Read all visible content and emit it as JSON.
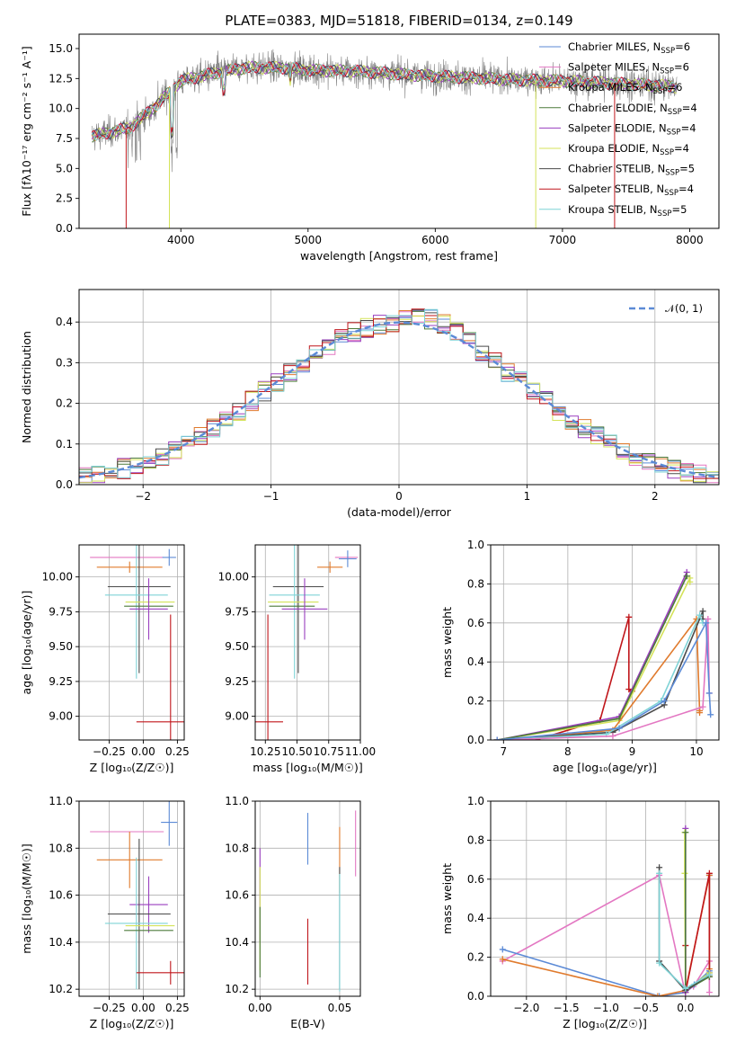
{
  "colors": {
    "Chabrier MILES": "#5b8ad6",
    "Salpeter MILES": "#e377c2",
    "Kroupa MILES": "#e07b2e",
    "Chabrier ELODIE": "#4c7a3a",
    "Salpeter ELODIE": "#9a3fbf",
    "Kroupa ELODIE": "#d4e35a",
    "Chabrier STELIB": "#4a4a4a",
    "Salpeter STELIB": "#c0161b",
    "Kroupa STELIB": "#7fd3d6",
    "data": "#7f7f7f"
  },
  "chart_data": [
    {
      "id": "spectrum",
      "type": "line",
      "title": "PLATE=0383, MJD=51818, FIBERID=0134, z=0.149",
      "xlabel": "wavelength [Angstrom, rest frame]",
      "ylabel": "Flux [fλ10⁻¹⁷ erg cm⁻² s⁻¹ A⁻¹]",
      "xlim": [
        3200,
        8230
      ],
      "ylim": [
        0,
        16.2
      ],
      "xticks": [
        "4000",
        "5000",
        "6000",
        "7000",
        "8000"
      ],
      "yticks": [
        "0.0",
        "2.5",
        "5.0",
        "7.5",
        "10.0",
        "12.5",
        "15.0"
      ],
      "legend": [
        {
          "label": "Chabrier MILES, N",
          "sub": "SSP",
          "val": "=6",
          "key": "Chabrier MILES"
        },
        {
          "label": "Salpeter MILES, N",
          "sub": "SSP",
          "val": "=6",
          "key": "Salpeter MILES"
        },
        {
          "label": "Kroupa MILES, N",
          "sub": "SSP",
          "val": "=6",
          "key": "Kroupa MILES"
        },
        {
          "label": "Chabrier ELODIE, N",
          "sub": "SSP",
          "val": "=4",
          "key": "Chabrier ELODIE"
        },
        {
          "label": "Salpeter ELODIE, N",
          "sub": "SSP",
          "val": "=4",
          "key": "Salpeter ELODIE"
        },
        {
          "label": "Kroupa ELODIE, N",
          "sub": "SSP",
          "val": "=4",
          "key": "Kroupa ELODIE"
        },
        {
          "label": "Chabrier STELIB, N",
          "sub": "SSP",
          "val": "=5",
          "key": "Chabrier STELIB"
        },
        {
          "label": "Salpeter STELIB, N",
          "sub": "SSP",
          "val": "=4",
          "key": "Salpeter STELIB"
        },
        {
          "label": "Kroupa STELIB, N",
          "sub": "SSP",
          "val": "=5",
          "key": "Kroupa STELIB"
        }
      ],
      "continuum": [
        [
          3300,
          7.7
        ],
        [
          3400,
          7.9
        ],
        [
          3600,
          8.4
        ],
        [
          3800,
          10.2
        ],
        [
          4000,
          12.3
        ],
        [
          4200,
          12.8
        ],
        [
          4500,
          13.4
        ],
        [
          4800,
          13.4
        ],
        [
          5000,
          13.2
        ],
        [
          5400,
          13.1
        ],
        [
          5800,
          12.8
        ],
        [
          6200,
          12.6
        ],
        [
          6600,
          12.4
        ],
        [
          7000,
          12.3
        ],
        [
          7400,
          12.1
        ],
        [
          7800,
          11.9
        ],
        [
          7900,
          11.8
        ]
      ],
      "dips": [
        {
          "key": "Salpeter STELIB",
          "x": 3570
        },
        {
          "key": "Kroupa ELODIE",
          "x": 3910
        },
        {
          "key": "Kroupa ELODIE",
          "x": 6790
        },
        {
          "key": "Salpeter STELIB",
          "x": 7410
        }
      ]
    },
    {
      "id": "residuals",
      "type": "histogram",
      "xlabel": "(data-model)/error",
      "ylabel": "Normed distribution",
      "xlim": [
        -2.5,
        2.5
      ],
      "ylim": [
        0,
        0.48
      ],
      "xticks": [
        "−2",
        "−1",
        "0",
        "1",
        "2"
      ],
      "yticks": [
        "0.0",
        "0.1",
        "0.2",
        "0.3",
        "0.4"
      ],
      "legend_label": "𝒩(0, 1)",
      "bin_width": 0.1
    },
    {
      "id": "age-Z",
      "type": "errorbar",
      "xlabel": "Z [log₁₀(Z/Z☉)]",
      "ylabel": "age  [log₁₀(age/yr)]",
      "xlim": [
        -0.47,
        0.3
      ],
      "ylim": [
        8.83,
        10.23
      ],
      "xticks": [
        "−0.25",
        "0.00",
        "0.25"
      ],
      "yticks": [
        "9.00",
        "9.25",
        "9.50",
        "9.75",
        "10.00"
      ],
      "points": [
        {
          "key": "Salpeter MILES",
          "x": -0.12,
          "xerr": 0.27,
          "y": 10.14,
          "yerr": 0.0
        },
        {
          "key": "Chabrier MILES",
          "x": 0.19,
          "xerr": 0.05,
          "y": 10.14,
          "yerr": 0.06
        },
        {
          "key": "Kroupa MILES",
          "x": -0.1,
          "xerr": 0.24,
          "y": 10.07,
          "yerr": 0.04
        },
        {
          "key": "Chabrier STELIB",
          "x": -0.03,
          "xerr": 0.23,
          "y": 9.93,
          "yerr": 0.62
        },
        {
          "key": "Kroupa STELIB",
          "x": -0.05,
          "xerr": 0.23,
          "y": 9.87,
          "yerr": 0.6
        },
        {
          "key": "Kroupa ELODIE",
          "x": 0.05,
          "xerr": 0.18,
          "y": 9.82,
          "yerr": 0.0
        },
        {
          "key": "Chabrier ELODIE",
          "x": 0.04,
          "xerr": 0.18,
          "y": 9.79,
          "yerr": 0.0
        },
        {
          "key": "Salpeter ELODIE",
          "x": 0.04,
          "xerr": 0.14,
          "y": 9.77,
          "yerr": 0.22
        },
        {
          "key": "Salpeter STELIB",
          "x": 0.2,
          "xerr": 0.25,
          "y": 8.96,
          "yerr": 0.77
        }
      ]
    },
    {
      "id": "age-mass",
      "type": "errorbar",
      "xlabel": "mass [log₁₀(M/M☉)]",
      "xlim": [
        10.17,
        11.0
      ],
      "ylim": [
        8.83,
        10.23
      ],
      "xticks": [
        "10.25",
        "10.50",
        "10.75",
        "11.00"
      ],
      "yticks": [
        "9.00",
        "9.25",
        "9.50",
        "9.75",
        "10.00"
      ],
      "points": [
        {
          "key": "Salpeter MILES",
          "x": 10.89,
          "xerr": 0.09,
          "y": 10.14,
          "yerr": 0.0
        },
        {
          "key": "Chabrier MILES",
          "x": 10.9,
          "xerr": 0.07,
          "y": 10.13,
          "yerr": 0.06
        },
        {
          "key": "Kroupa MILES",
          "x": 10.76,
          "xerr": 0.1,
          "y": 10.07,
          "yerr": 0.04
        },
        {
          "key": "Chabrier STELIB",
          "x": 10.51,
          "xerr": 0.2,
          "y": 9.93,
          "yerr": 0.62
        },
        {
          "key": "Kroupa STELIB",
          "x": 10.48,
          "xerr": 0.2,
          "y": 9.87,
          "yerr": 0.6
        },
        {
          "key": "Kroupa ELODIE",
          "x": 10.47,
          "xerr": 0.2,
          "y": 9.82,
          "yerr": 0.0
        },
        {
          "key": "Chabrier ELODIE",
          "x": 10.46,
          "xerr": 0.18,
          "y": 9.79,
          "yerr": 0.0
        },
        {
          "key": "Salpeter ELODIE",
          "x": 10.56,
          "xerr": 0.18,
          "y": 9.77,
          "yerr": 0.22
        },
        {
          "key": "Salpeter STELIB",
          "x": 10.27,
          "xerr": 0.12,
          "y": 8.96,
          "yerr": 0.77
        }
      ]
    },
    {
      "id": "weight-age",
      "type": "line",
      "xlabel": "age  [log₁₀(age/yr)]",
      "ylabel": "mass weight",
      "xlim": [
        6.8,
        10.35
      ],
      "ylim": [
        0,
        1.0
      ],
      "xticks": [
        "7",
        "8",
        "9",
        "10"
      ],
      "yticks": [
        "0.0",
        "0.2",
        "0.4",
        "0.6",
        "0.8",
        "1.0"
      ],
      "series": [
        {
          "key": "Salpeter STELIB",
          "x": [
            7.5,
            8.5,
            8.95,
            8.95,
            9.0
          ],
          "y": [
            0.0,
            0.1,
            0.63,
            0.26,
            0.25
          ]
        },
        {
          "key": "Salpeter ELODIE",
          "x": [
            6.9,
            8.8,
            9.85,
            9.85
          ],
          "y": [
            0.0,
            0.12,
            0.86,
            0.84
          ]
        },
        {
          "key": "Kroupa ELODIE",
          "x": [
            6.9,
            8.8,
            9.9,
            9.9
          ],
          "y": [
            0.0,
            0.1,
            0.83,
            0.81
          ]
        },
        {
          "key": "Chabrier ELODIE",
          "x": [
            6.9,
            8.8,
            9.85
          ],
          "y": [
            0.0,
            0.11,
            0.84
          ]
        },
        {
          "key": "Kroupa MILES",
          "x": [
            6.9,
            8.7,
            10.0,
            10.05,
            10.05
          ],
          "y": [
            0.0,
            0.05,
            0.62,
            0.15,
            0.14
          ]
        },
        {
          "key": "Chabrier STELIB",
          "x": [
            6.9,
            8.7,
            9.5,
            10.1,
            10.1
          ],
          "y": [
            0.0,
            0.04,
            0.18,
            0.66,
            0.62
          ]
        },
        {
          "key": "Kroupa STELIB",
          "x": [
            6.9,
            8.6,
            9.45,
            10.05,
            10.1
          ],
          "y": [
            0.0,
            0.03,
            0.2,
            0.64,
            0.6
          ]
        },
        {
          "key": "Salpeter MILES",
          "x": [
            6.9,
            8.7,
            10.1,
            10.18,
            10.2
          ],
          "y": [
            0.0,
            0.02,
            0.17,
            0.62,
            0.24
          ]
        },
        {
          "key": "Chabrier MILES",
          "x": [
            6.9,
            8.8,
            9.5,
            10.15,
            10.2,
            10.22
          ],
          "y": [
            0.0,
            0.06,
            0.2,
            0.6,
            0.24,
            0.13
          ]
        }
      ]
    },
    {
      "id": "mass-Z",
      "type": "errorbar",
      "xlabel": "Z [log₁₀(Z/Z☉)]",
      "ylabel": "mass [log₁₀(M/M☉)]",
      "xlim": [
        -0.47,
        0.3
      ],
      "ylim": [
        10.17,
        11.0
      ],
      "xticks": [
        "−0.25",
        "0.00",
        "0.25"
      ],
      "yticks": [
        "10.2",
        "10.4",
        "10.6",
        "10.8",
        "11.0"
      ],
      "points": [
        {
          "key": "Chabrier MILES",
          "x": 0.19,
          "xerr": 0.06,
          "y": 10.91,
          "yerr": 0.1
        },
        {
          "key": "Salpeter MILES",
          "x": -0.12,
          "xerr": 0.27,
          "y": 10.87,
          "yerr": 0.0
        },
        {
          "key": "Kroupa MILES",
          "x": -0.1,
          "xerr": 0.24,
          "y": 10.75,
          "yerr": 0.12
        },
        {
          "key": "Salpeter ELODIE",
          "x": 0.04,
          "xerr": 0.14,
          "y": 10.56,
          "yerr": 0.12
        },
        {
          "key": "Chabrier STELIB",
          "x": -0.03,
          "xerr": 0.23,
          "y": 10.52,
          "yerr": 0.32
        },
        {
          "key": "Kroupa STELIB",
          "x": -0.05,
          "xerr": 0.23,
          "y": 10.48,
          "yerr": 0.28
        },
        {
          "key": "Kroupa ELODIE",
          "x": 0.05,
          "xerr": 0.18,
          "y": 10.47,
          "yerr": 0.0
        },
        {
          "key": "Chabrier ELODIE",
          "x": 0.04,
          "xerr": 0.18,
          "y": 10.45,
          "yerr": 0.0
        },
        {
          "key": "Salpeter STELIB",
          "x": 0.2,
          "xerr": 0.25,
          "y": 10.27,
          "yerr": 0.05
        }
      ]
    },
    {
      "id": "mass-EBV",
      "type": "errorbar",
      "xlabel": "E(B-V)",
      "xlim": [
        -0.003,
        0.063
      ],
      "ylim": [
        10.17,
        11.0
      ],
      "xticks": [
        "0.00",
        "0.05"
      ],
      "yticks": [
        "10.2",
        "10.4",
        "10.6",
        "10.8",
        "11.0"
      ],
      "points": [
        {
          "key": "Salpeter ELODIE",
          "x": 0.0,
          "xerr": 0.0,
          "y": 10.6,
          "yerr": 0.2
        },
        {
          "key": "Kroupa ELODIE",
          "x": 0.0,
          "xerr": 0.0,
          "y": 10.5,
          "yerr": 0.22
        },
        {
          "key": "Chabrier ELODIE",
          "x": 0.0,
          "xerr": 0.0,
          "y": 10.4,
          "yerr": 0.15
        },
        {
          "key": "Chabrier MILES",
          "x": 0.03,
          "xerr": 0.0,
          "y": 10.84,
          "yerr": 0.11
        },
        {
          "key": "Salpeter STELIB",
          "x": 0.03,
          "xerr": 0.0,
          "y": 10.36,
          "yerr": 0.14
        },
        {
          "key": "Kroupa MILES",
          "x": 0.05,
          "xerr": 0.0,
          "y": 10.75,
          "yerr": 0.14
        },
        {
          "key": "Chabrier STELIB",
          "x": 0.05,
          "xerr": 0.0,
          "y": 10.46,
          "yerr": 0.26
        },
        {
          "key": "Kroupa STELIB",
          "x": 0.05,
          "xerr": 0.0,
          "y": 10.44,
          "yerr": 0.25
        },
        {
          "key": "Salpeter MILES",
          "x": 0.06,
          "xerr": 0.0,
          "y": 10.82,
          "yerr": 0.14
        }
      ]
    },
    {
      "id": "weight-Z",
      "type": "line",
      "xlabel": "Z [log₁₀(Z/Z☉)]",
      "ylabel": "mass weight",
      "xlim": [
        -2.45,
        0.42
      ],
      "ylim": [
        0,
        1.0
      ],
      "xticks": [
        "−2.0",
        "−1.5",
        "−1.0",
        "−0.5",
        "0.0"
      ],
      "yticks": [
        "0.0",
        "0.2",
        "0.4",
        "0.6",
        "0.8",
        "1.0"
      ],
      "series": [
        {
          "key": "Salpeter MILES",
          "x": [
            -2.3,
            -0.33,
            -0.01,
            0.1,
            0.3,
            0.3
          ],
          "y": [
            0.18,
            0.62,
            0.03,
            0.05,
            0.18,
            0.02
          ]
        },
        {
          "key": "Chabrier MILES",
          "x": [
            -2.3,
            -0.33,
            0.0,
            0.11,
            0.3,
            0.3
          ],
          "y": [
            0.24,
            0.0,
            0.02,
            0.06,
            0.13,
            0.62
          ]
        },
        {
          "key": "Kroupa MILES",
          "x": [
            -2.3,
            -0.35,
            0.0,
            0.3,
            0.3
          ],
          "y": [
            0.19,
            0.0,
            0.03,
            0.62,
            0.14
          ]
        },
        {
          "key": "Salpeter STELIB",
          "x": [
            0.0,
            0.0,
            0.3,
            0.3
          ],
          "y": [
            0.26,
            0.02,
            0.63,
            0.1
          ]
        },
        {
          "key": "Salpeter ELODIE",
          "x": [
            0.0,
            0.0,
            0.3
          ],
          "y": [
            0.86,
            0.02,
            0.12
          ]
        },
        {
          "key": "Kroupa ELODIE",
          "x": [
            -0.01,
            -0.01,
            0.0,
            0.3
          ],
          "y": [
            0.84,
            0.63,
            0.03,
            0.12
          ]
        },
        {
          "key": "Chabrier ELODIE",
          "x": [
            0.0,
            0.0,
            0.3
          ],
          "y": [
            0.84,
            0.03,
            0.1
          ]
        },
        {
          "key": "Chabrier STELIB",
          "x": [
            -0.33,
            -0.33,
            0.0,
            0.3
          ],
          "y": [
            0.66,
            0.18,
            0.03,
            0.11
          ]
        },
        {
          "key": "Kroupa STELIB",
          "x": [
            -0.33,
            -0.33,
            0.0,
            0.3
          ],
          "y": [
            0.63,
            0.17,
            0.04,
            0.11
          ]
        }
      ]
    }
  ]
}
